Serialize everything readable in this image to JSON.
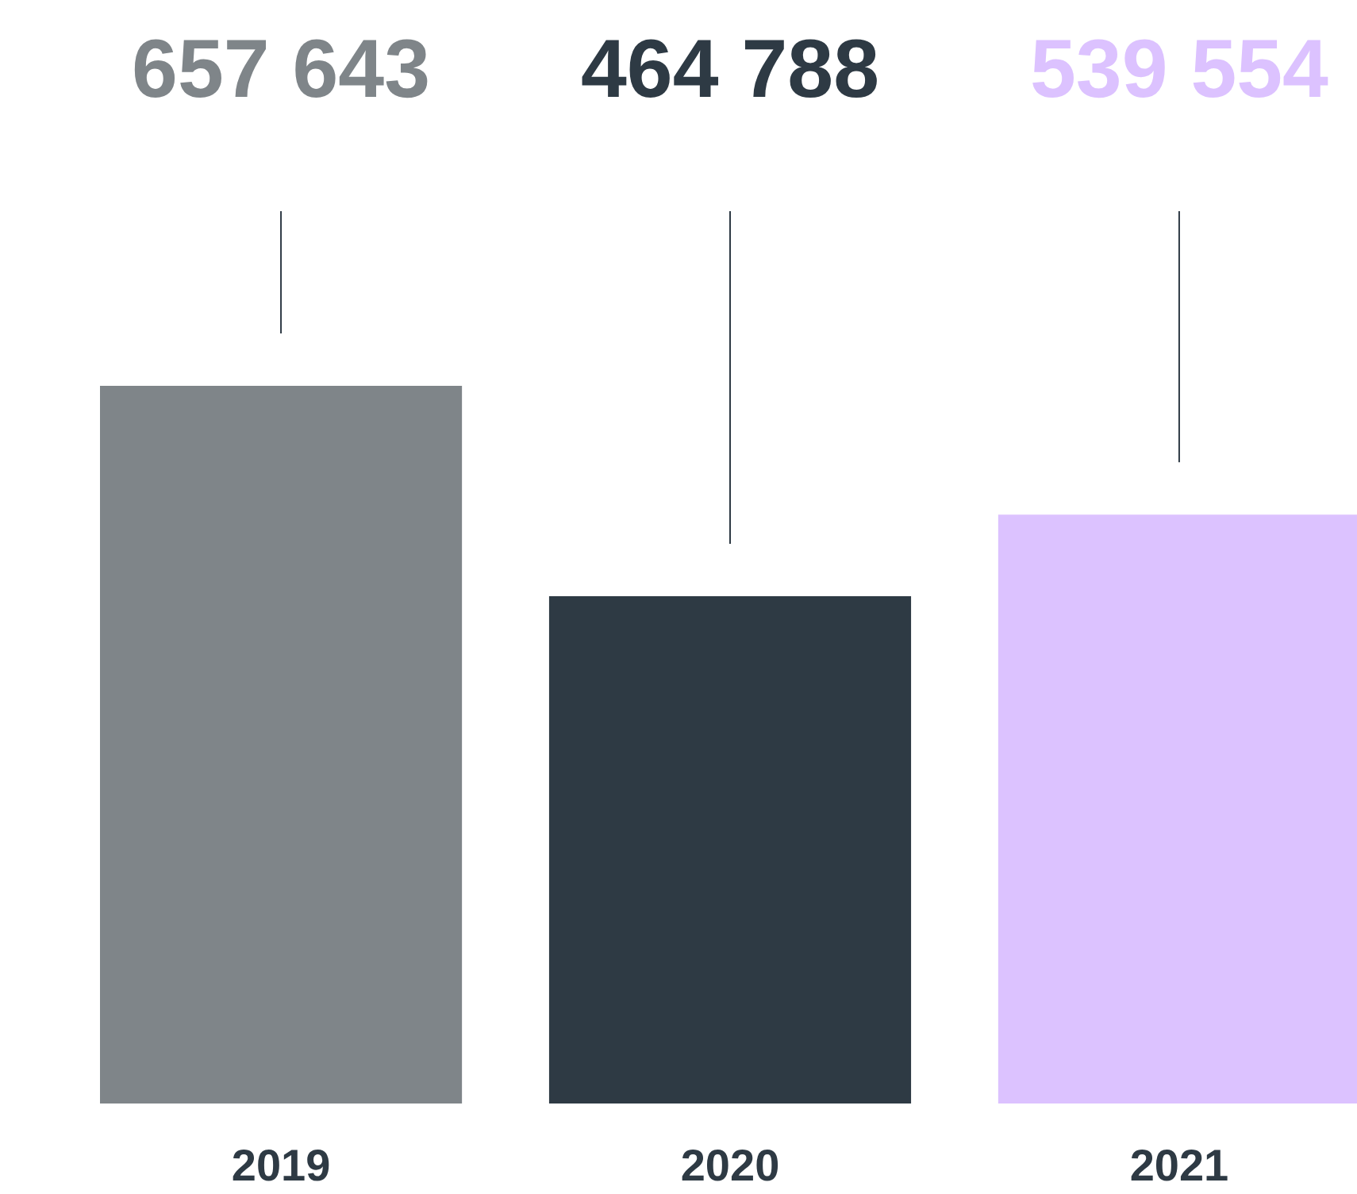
{
  "chart_data": {
    "type": "bar",
    "categories": [
      "2019",
      "2020",
      "2021"
    ],
    "values": [
      657643,
      464788,
      539554
    ],
    "colors": [
      "#7f8589",
      "#2e3a44",
      "#dcc2ff"
    ],
    "value_labels": [
      "657 643",
      "464 788",
      "539 554"
    ]
  }
}
